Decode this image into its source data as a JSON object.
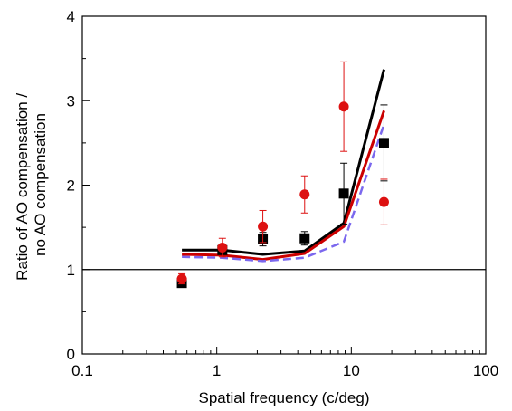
{
  "chart_data": {
    "type": "scatter",
    "title": "",
    "xlabel": "Spatial frequency (c/deg)",
    "ylabel_lines": [
      "Ratio of AO compensation /",
      "no AO compensation"
    ],
    "xscale": "log",
    "xlim": [
      0.1,
      100
    ],
    "ylim": [
      0,
      4
    ],
    "x_ticks": [
      0.1,
      1,
      10,
      100
    ],
    "x_tick_labels": [
      "0.1",
      "1",
      "10",
      "100"
    ],
    "y_ticks": [
      0,
      1,
      2,
      3,
      4
    ],
    "y_tick_labels": [
      "0",
      "1",
      "2",
      "3",
      "4"
    ],
    "reference_line": {
      "y": 1,
      "color": "#000000"
    },
    "grid": false,
    "lines": [
      {
        "style": "solid",
        "color": "#000000",
        "x": [
          0.55,
          1.1,
          2.2,
          4.5,
          8.8,
          17.5
        ],
        "y": [
          1.23,
          1.23,
          1.18,
          1.22,
          1.55,
          3.37
        ]
      },
      {
        "style": "solid",
        "color": "#cc0000",
        "x": [
          0.55,
          1.1,
          2.2,
          4.5,
          8.8,
          17.5
        ],
        "y": [
          1.18,
          1.17,
          1.12,
          1.19,
          1.51,
          2.88
        ]
      },
      {
        "style": "dashed",
        "color": "#7b68ee",
        "x": [
          0.55,
          1.1,
          2.2,
          4.5,
          8.8,
          17.5
        ],
        "y": [
          1.15,
          1.14,
          1.1,
          1.14,
          1.33,
          2.72
        ]
      }
    ],
    "points": [
      {
        "marker": "square",
        "color": "#000000",
        "x": [
          0.55,
          1.1,
          2.2,
          4.5,
          8.8,
          17.5
        ],
        "y": [
          0.84,
          1.23,
          1.36,
          1.37,
          1.9,
          2.5
        ],
        "err": [
          0.04,
          0.05,
          0.08,
          0.08,
          0.36,
          0.45
        ]
      },
      {
        "marker": "circle",
        "color": "#dd1111",
        "x": [
          0.55,
          1.1,
          2.2,
          4.5,
          8.8,
          17.5
        ],
        "y": [
          0.89,
          1.26,
          1.51,
          1.89,
          2.93,
          1.8
        ],
        "err": [
          0.06,
          0.11,
          0.19,
          0.22,
          0.53,
          0.27
        ]
      }
    ]
  }
}
